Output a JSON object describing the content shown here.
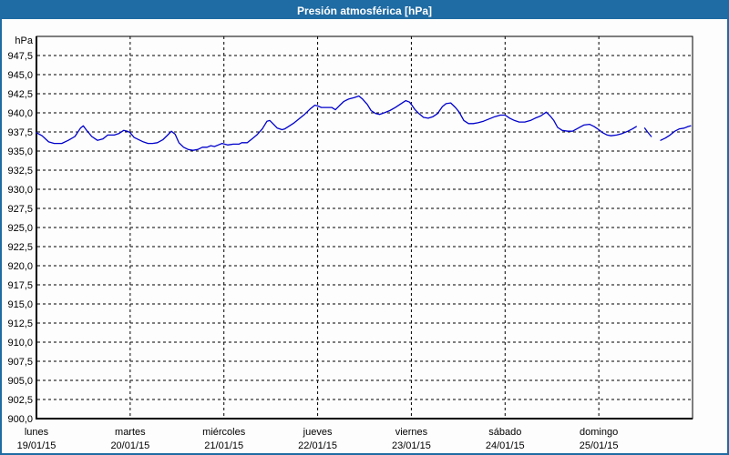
{
  "window": {
    "title": "Presión atmosférica [hPa]"
  },
  "colors": {
    "frame": "#1f6ba3",
    "titlebar_bg": "#1f6ba3",
    "title_text": "#ffffff",
    "plot_border": "#000000",
    "grid": "#000000",
    "tick_text": "#000000",
    "series_line": "#0000cc",
    "background": "#fcfdfc"
  },
  "chart_data": {
    "type": "line",
    "title": "Presión atmosférica [hPa]",
    "unit_label": "hPa",
    "grid": "dashed",
    "legend": "none",
    "y_axis": {
      "min": 900,
      "max": 950,
      "step": 2.5,
      "tick_labels": [
        "947,5",
        "945,0",
        "942,5",
        "940,0",
        "937,5",
        "935,0",
        "932,5",
        "930,0",
        "927,5",
        "925,0",
        "922,5",
        "920,0",
        "917,5",
        "915,0",
        "912,5",
        "910,0",
        "907,5",
        "905,0",
        "902,5",
        "900,0"
      ],
      "tick_values": [
        947.5,
        945.0,
        942.5,
        940.0,
        937.5,
        935.0,
        932.5,
        930.0,
        927.5,
        925.0,
        922.5,
        920.0,
        917.5,
        915.0,
        912.5,
        910.0,
        907.5,
        905.0,
        902.5,
        900.0
      ]
    },
    "x_axis": {
      "min_day": 0,
      "max_day": 7,
      "days": [
        {
          "name": "lunes",
          "date": "19/01/15"
        },
        {
          "name": "martes",
          "date": "20/01/15"
        },
        {
          "name": "miércoles",
          "date": "21/01/15"
        },
        {
          "name": "jueves",
          "date": "22/01/15"
        },
        {
          "name": "viernes",
          "date": "23/01/15"
        },
        {
          "name": "sábado",
          "date": "24/01/15"
        },
        {
          "name": "domingo",
          "date": "25/01/15"
        }
      ]
    },
    "series": [
      {
        "name": "Presión atmosférica",
        "color": "#0000cc",
        "unit": "hPa",
        "segments": [
          [
            [
              0.0,
              937.4
            ],
            [
              0.06,
              937.0
            ],
            [
              0.13,
              936.2
            ],
            [
              0.19,
              936.0
            ],
            [
              0.27,
              936.0
            ],
            [
              0.34,
              936.4
            ],
            [
              0.41,
              936.9
            ],
            [
              0.47,
              938.0
            ],
            [
              0.5,
              938.3
            ],
            [
              0.53,
              937.8
            ],
            [
              0.59,
              936.9
            ],
            [
              0.65,
              936.4
            ],
            [
              0.71,
              936.6
            ],
            [
              0.76,
              937.1
            ],
            [
              0.83,
              937.1
            ],
            [
              0.88,
              937.3
            ],
            [
              0.93,
              937.7
            ],
            [
              0.97,
              937.6
            ],
            [
              1.0,
              937.4
            ],
            [
              1.04,
              936.8
            ],
            [
              1.09,
              936.5
            ],
            [
              1.14,
              936.2
            ],
            [
              1.19,
              936.0
            ],
            [
              1.24,
              936.0
            ],
            [
              1.29,
              936.1
            ],
            [
              1.35,
              936.5
            ],
            [
              1.4,
              937.1
            ],
            [
              1.44,
              937.6
            ],
            [
              1.48,
              937.2
            ],
            [
              1.52,
              936.1
            ],
            [
              1.57,
              935.5
            ],
            [
              1.62,
              935.2
            ],
            [
              1.67,
              935.1
            ],
            [
              1.72,
              935.2
            ],
            [
              1.77,
              935.5
            ],
            [
              1.82,
              935.5
            ],
            [
              1.86,
              935.7
            ],
            [
              1.9,
              935.6
            ],
            [
              1.94,
              935.8
            ],
            [
              1.98,
              936.0
            ],
            [
              2.04,
              935.8
            ],
            [
              2.1,
              935.9
            ],
            [
              2.16,
              935.9
            ],
            [
              2.19,
              936.1
            ],
            [
              2.25,
              936.1
            ],
            [
              2.3,
              936.6
            ],
            [
              2.35,
              937.1
            ],
            [
              2.41,
              937.9
            ],
            [
              2.46,
              938.9
            ],
            [
              2.49,
              939.0
            ],
            [
              2.53,
              938.5
            ],
            [
              2.57,
              938.0
            ],
            [
              2.62,
              937.8
            ],
            [
              2.65,
              937.9
            ],
            [
              2.7,
              938.3
            ],
            [
              2.75,
              938.7
            ],
            [
              2.8,
              939.2
            ],
            [
              2.86,
              939.8
            ],
            [
              2.92,
              940.5
            ],
            [
              2.97,
              941.0
            ],
            [
              3.0,
              940.9
            ],
            [
              3.04,
              940.7
            ],
            [
              3.09,
              940.7
            ],
            [
              3.15,
              940.7
            ],
            [
              3.19,
              940.4
            ],
            [
              3.23,
              940.9
            ],
            [
              3.28,
              941.5
            ],
            [
              3.33,
              941.8
            ],
            [
              3.39,
              942.0
            ],
            [
              3.44,
              942.2
            ],
            [
              3.48,
              941.8
            ],
            [
              3.53,
              941.1
            ],
            [
              3.57,
              940.3
            ],
            [
              3.62,
              939.9
            ],
            [
              3.66,
              939.8
            ],
            [
              3.71,
              940.0
            ],
            [
              3.77,
              940.3
            ],
            [
              3.83,
              940.7
            ],
            [
              3.89,
              941.2
            ],
            [
              3.94,
              941.6
            ],
            [
              3.98,
              941.4
            ],
            [
              4.0,
              941.1
            ],
            [
              4.04,
              940.4
            ],
            [
              4.08,
              939.9
            ],
            [
              4.13,
              939.4
            ],
            [
              4.18,
              939.3
            ],
            [
              4.23,
              939.5
            ],
            [
              4.28,
              939.9
            ],
            [
              4.33,
              940.8
            ],
            [
              4.37,
              941.2
            ],
            [
              4.42,
              941.3
            ],
            [
              4.47,
              940.7
            ],
            [
              4.51,
              940.1
            ],
            [
              4.56,
              939.0
            ],
            [
              4.61,
              938.6
            ],
            [
              4.66,
              938.6
            ],
            [
              4.71,
              938.7
            ],
            [
              4.77,
              938.9
            ],
            [
              4.83,
              939.2
            ],
            [
              4.89,
              939.5
            ],
            [
              4.95,
              939.7
            ],
            [
              5.0,
              939.7
            ],
            [
              5.05,
              939.3
            ],
            [
              5.1,
              939.0
            ],
            [
              5.15,
              938.8
            ],
            [
              5.21,
              938.8
            ],
            [
              5.27,
              939.0
            ],
            [
              5.32,
              939.3
            ],
            [
              5.38,
              939.6
            ],
            [
              5.44,
              940.1
            ],
            [
              5.48,
              939.6
            ],
            [
              5.52,
              939.0
            ],
            [
              5.56,
              938.1
            ],
            [
              5.61,
              937.7
            ],
            [
              5.67,
              937.6
            ],
            [
              5.72,
              937.6
            ],
            [
              5.78,
              938.0
            ],
            [
              5.84,
              938.4
            ],
            [
              5.9,
              938.5
            ],
            [
              5.95,
              938.2
            ],
            [
              6.0,
              937.8
            ],
            [
              6.04,
              937.4
            ],
            [
              6.09,
              937.1
            ],
            [
              6.13,
              937.0
            ],
            [
              6.19,
              937.1
            ],
            [
              6.25,
              937.3
            ],
            [
              6.31,
              937.6
            ],
            [
              6.36,
              937.9
            ],
            [
              6.4,
              938.2
            ]
          ],
          [
            [
              6.49,
              938.0
            ],
            [
              6.52,
              937.5
            ],
            [
              6.56,
              936.9
            ]
          ],
          [
            [
              6.66,
              936.4
            ],
            [
              6.71,
              936.7
            ],
            [
              6.76,
              937.1
            ],
            [
              6.81,
              937.6
            ],
            [
              6.86,
              937.9
            ],
            [
              6.91,
              938.0
            ],
            [
              6.95,
              938.2
            ],
            [
              6.98,
              938.3
            ]
          ]
        ]
      }
    ]
  }
}
